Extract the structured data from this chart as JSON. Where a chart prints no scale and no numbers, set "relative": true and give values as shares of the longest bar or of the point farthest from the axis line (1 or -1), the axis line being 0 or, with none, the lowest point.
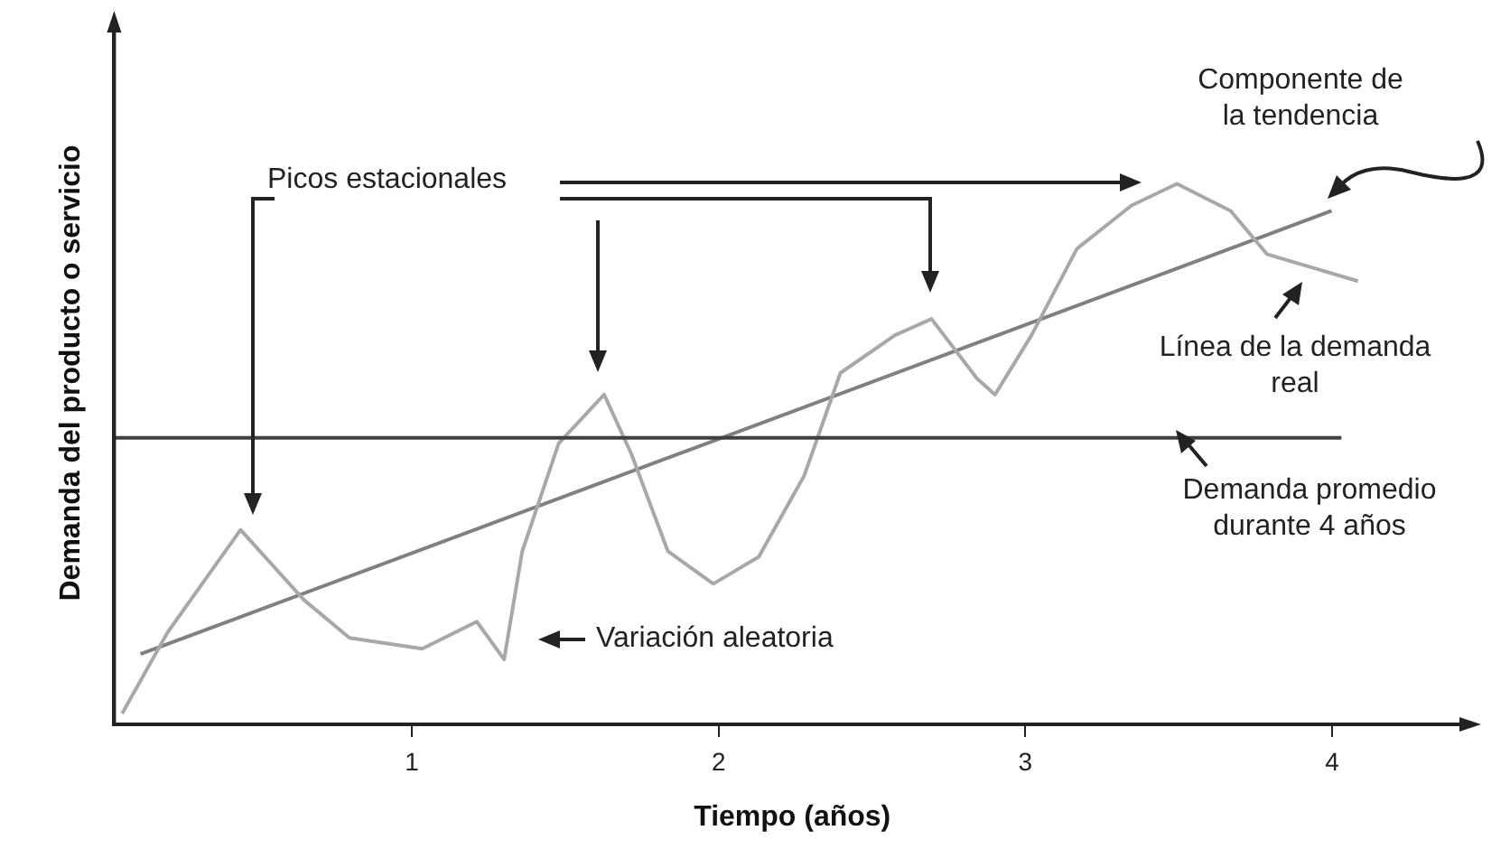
{
  "chart_data": {
    "type": "line",
    "relative": true,
    "xlabel": "Tiempo (años)",
    "ylabel": "Demanda del producto o servicio",
    "xlim": [
      0.03,
      4.45
    ],
    "xticks": [
      1,
      2,
      3,
      4
    ],
    "grid": false,
    "legend": false,
    "marker": "none",
    "line_style": "solid",
    "series": [
      {
        "color": "#a8a8a8",
        "x": [
          0.056,
          0.204,
          0.442,
          0.649,
          0.797,
          1.034,
          1.212,
          1.301,
          1.36,
          1.479,
          1.627,
          1.716,
          1.835,
          1.983,
          2.131,
          2.279,
          2.397,
          2.575,
          2.694,
          2.842,
          2.901,
          3.02,
          3.168,
          3.346,
          3.494,
          3.669,
          3.787,
          3.906,
          4.084
        ],
        "values": [
          0.02,
          0.17,
          0.36,
          0.23,
          0.16,
          0.14,
          0.19,
          0.12,
          0.32,
          0.52,
          0.61,
          0.5,
          0.32,
          0.26,
          0.31,
          0.46,
          0.65,
          0.72,
          0.75,
          0.64,
          0.61,
          0.72,
          0.88,
          0.96,
          1.0,
          0.95,
          0.87,
          0.85,
          0.82
        ]
      },
      {
        "color": "#808080",
        "x": [
          0.116,
          3.998
        ],
        "values": [
          0.13,
          0.95
        ]
      }
    ],
    "ref_lines": [
      {
        "axis": "y",
        "value": 0.53,
        "label": "Demanda promedio durante 4 años",
        "color": "#404040"
      }
    ],
    "annotations": [
      "Picos estacionales",
      "Variación aleatoria",
      "Línea de la demanda real",
      "Componente de la tendencia"
    ]
  }
}
